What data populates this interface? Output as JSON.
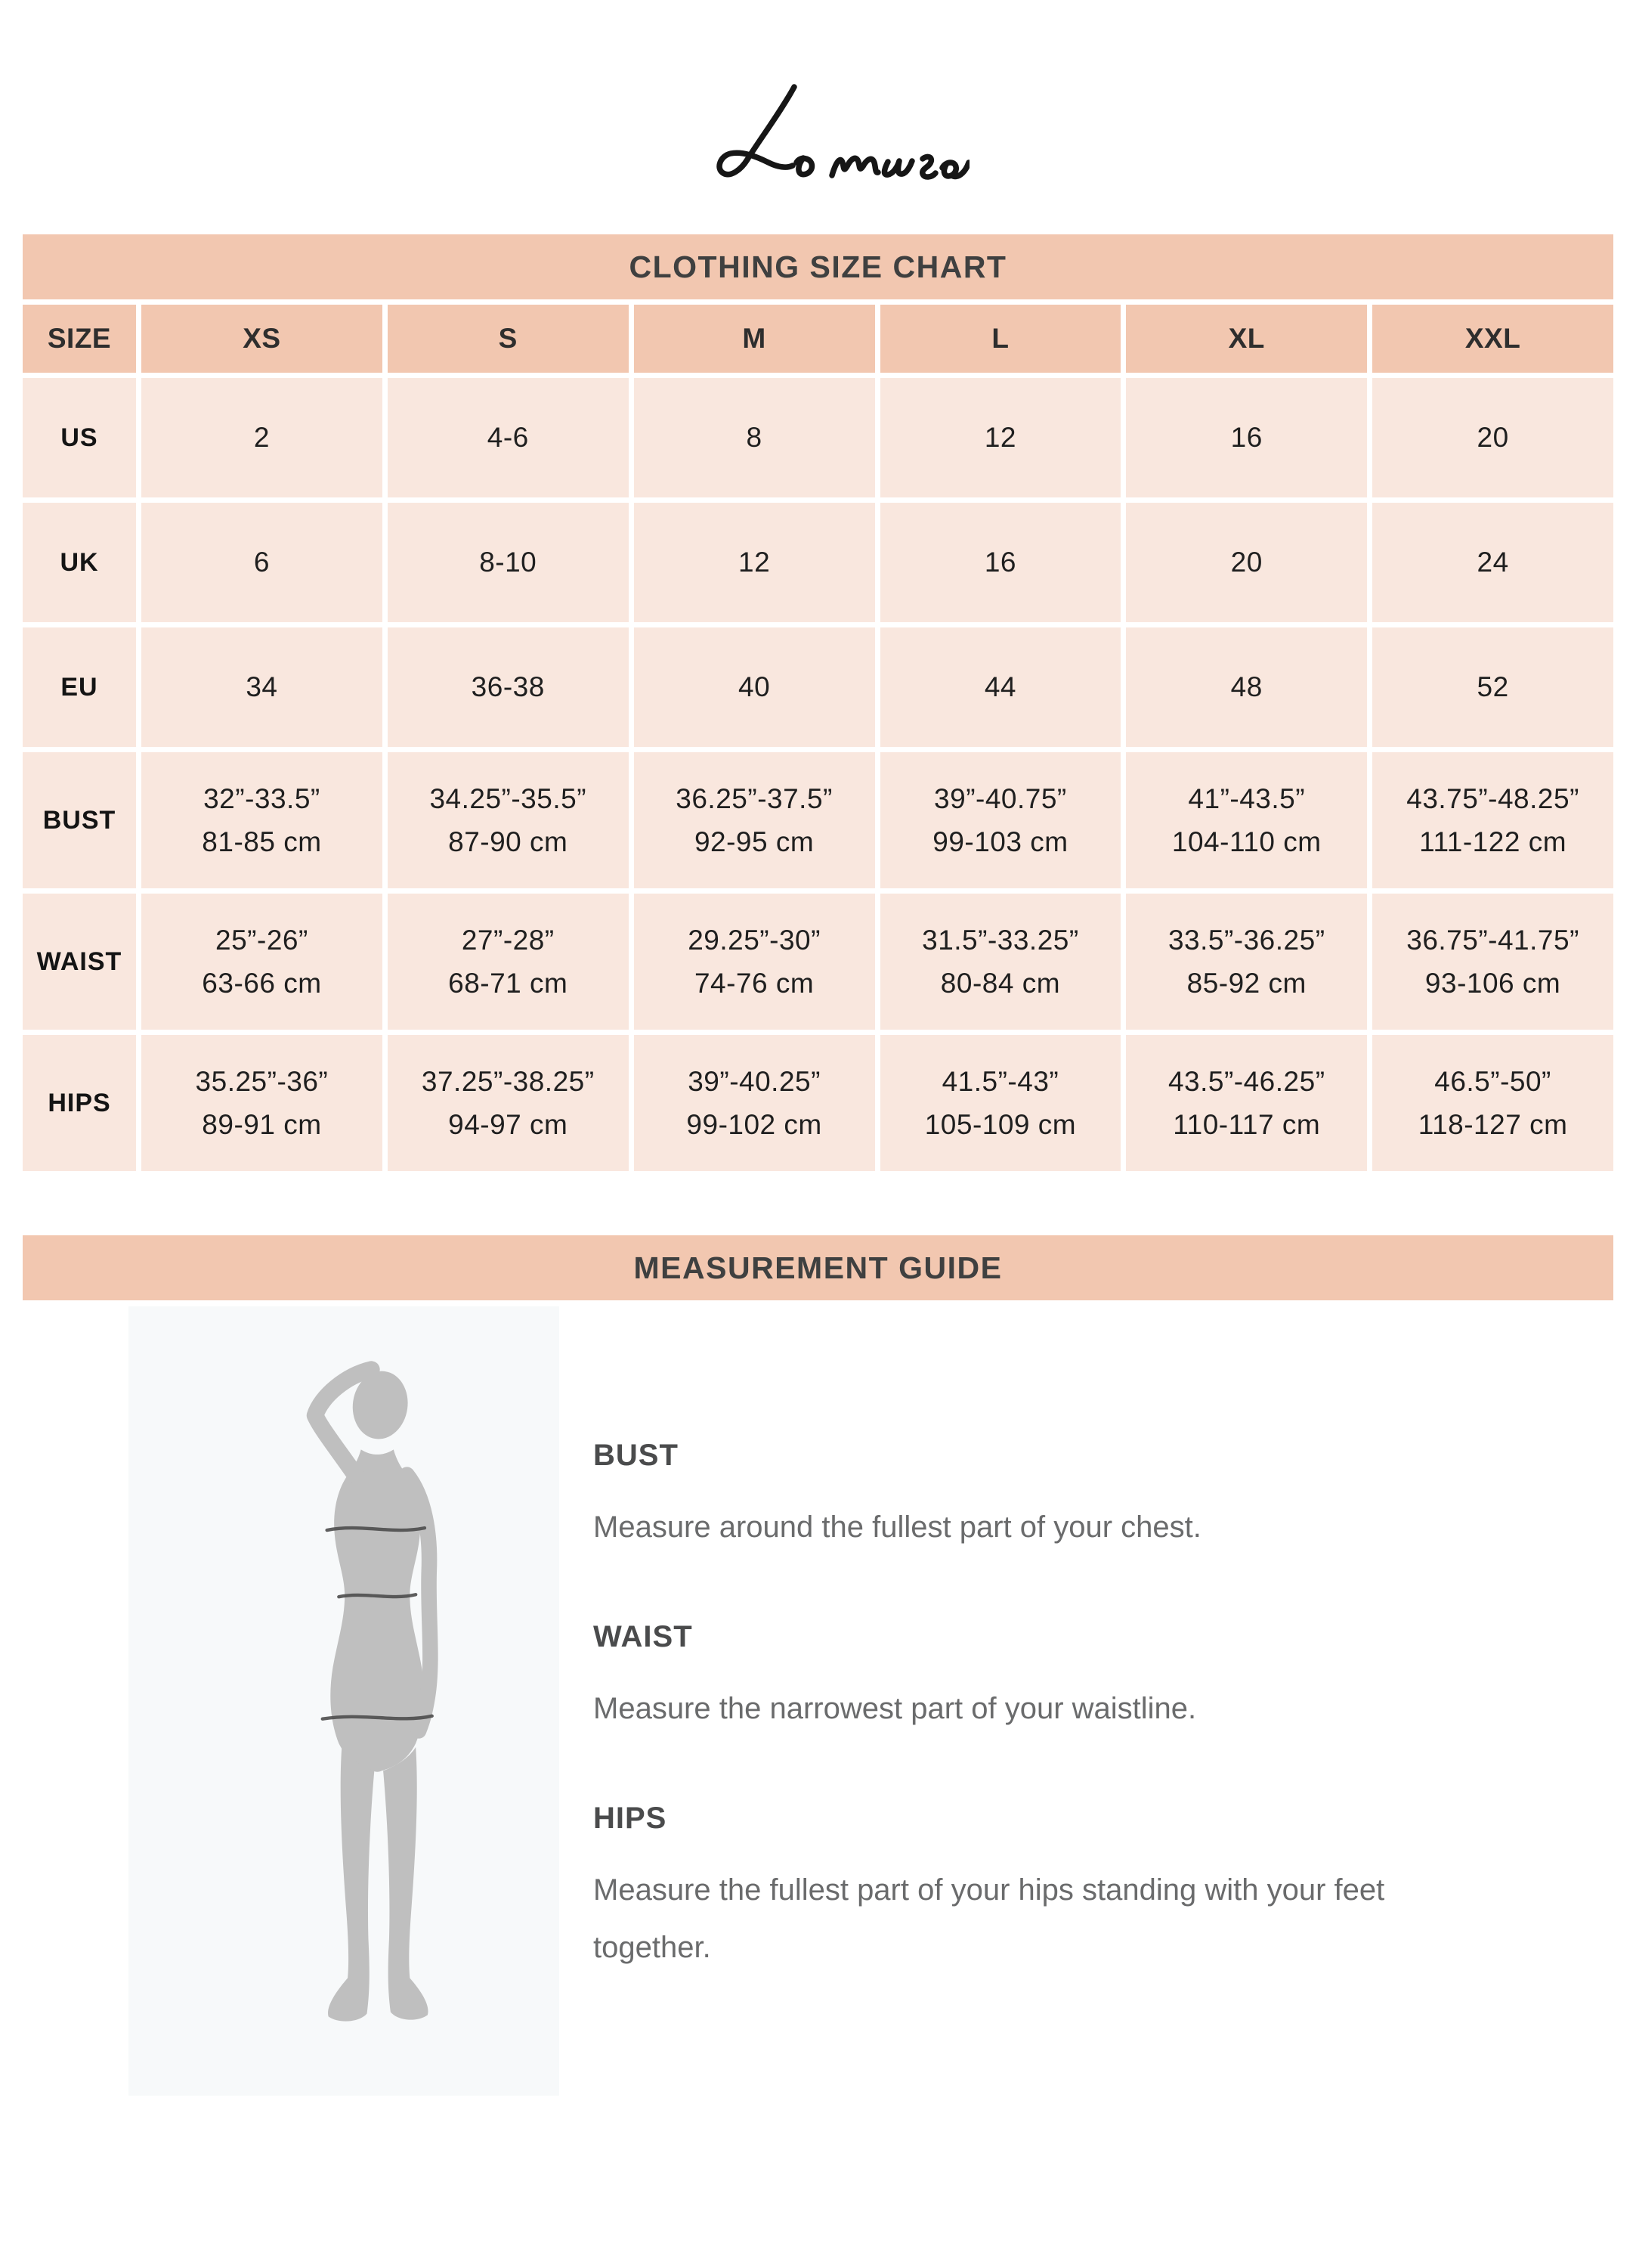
{
  "brand": {
    "name": "Le Muse"
  },
  "colors": {
    "band_bg": "#F2C7B0",
    "cell_bg": "#F9E7DE",
    "band_text": "#3F4040",
    "table_text": "#1F1F1F",
    "guide_heading": "#4A4B4C",
    "guide_body_text": "#6A6B6C",
    "silhouette_gray": "#BFBFBF",
    "measure_line": "#4D4D4D"
  },
  "size_chart": {
    "title": "CLOTHING SIZE CHART",
    "columns": [
      "SIZE",
      "XS",
      "S",
      "M",
      "L",
      "XL",
      "XXL"
    ],
    "rows": [
      {
        "label": "US",
        "values": [
          "2",
          "4-6",
          "8",
          "12",
          "16",
          "20"
        ]
      },
      {
        "label": "UK",
        "values": [
          "6",
          "8-10",
          "12",
          "16",
          "20",
          "24"
        ]
      },
      {
        "label": "EU",
        "values": [
          "34",
          "36-38",
          "40",
          "44",
          "48",
          "52"
        ]
      },
      {
        "label": "BUST",
        "values": [
          {
            "in": "32”-33.5”",
            "cm": "81-85 cm"
          },
          {
            "in": "34.25”-35.5”",
            "cm": "87-90 cm"
          },
          {
            "in": "36.25”-37.5”",
            "cm": "92-95 cm"
          },
          {
            "in": "39”-40.75”",
            "cm": "99-103 cm"
          },
          {
            "in": "41”-43.5”",
            "cm": "104-110 cm"
          },
          {
            "in": "43.75”-48.25”",
            "cm": "111-122 cm"
          }
        ]
      },
      {
        "label": "WAIST",
        "values": [
          {
            "in": "25”-26”",
            "cm": "63-66 cm"
          },
          {
            "in": "27”-28”",
            "cm": "68-71 cm"
          },
          {
            "in": "29.25”-30”",
            "cm": "74-76 cm"
          },
          {
            "in": "31.5”-33.25”",
            "cm": "80-84 cm"
          },
          {
            "in": "33.5”-36.25”",
            "cm": "85-92 cm"
          },
          {
            "in": "36.75”-41.75”",
            "cm": "93-106 cm"
          }
        ]
      },
      {
        "label": "HIPS",
        "values": [
          {
            "in": "35.25”-36”",
            "cm": "89-91 cm"
          },
          {
            "in": "37.25”-38.25”",
            "cm": "94-97 cm"
          },
          {
            "in": "39”-40.25”",
            "cm": "99-102 cm"
          },
          {
            "in": "41.5”-43”",
            "cm": "105-109 cm"
          },
          {
            "in": "43.5”-46.25”",
            "cm": "110-117 cm"
          },
          {
            "in": "46.5”-50”",
            "cm": "118-127 cm"
          }
        ]
      }
    ]
  },
  "measurement_guide": {
    "title": "MEASUREMENT GUIDE",
    "figure": "female-silhouette",
    "items": [
      {
        "label": "BUST",
        "text": "Measure around the fullest part of your chest."
      },
      {
        "label": "WAIST",
        "text": "Measure the narrowest part of your waistline."
      },
      {
        "label": "HIPS",
        "text": "Measure the fullest part of your hips standing with your feet together."
      }
    ]
  }
}
